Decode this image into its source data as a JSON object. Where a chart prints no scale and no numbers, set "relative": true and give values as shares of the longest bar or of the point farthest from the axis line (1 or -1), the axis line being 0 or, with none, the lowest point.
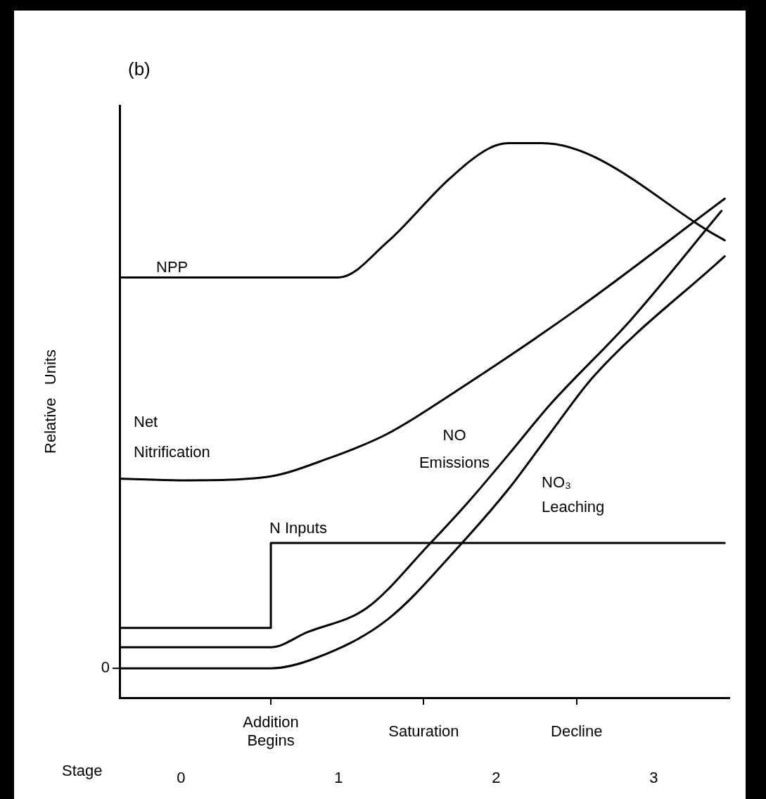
{
  "chart_data": {
    "type": "line",
    "title": "(b)",
    "ylabel": "Relative   Units",
    "xlabel": "Stage",
    "relative": true,
    "legend": false,
    "marker": "none",
    "line_style": "solid",
    "xlim": [
      -0.39,
      3.48
    ],
    "xticks": [
      0,
      1,
      2,
      3,
      {
        "value": 0.57,
        "label": null
      },
      {
        "value": 1.54,
        "label": null
      },
      {
        "value": 2.51,
        "label": null
      }
    ],
    "annotations": [
      "0",
      "Addition Begins",
      "Saturation",
      "Decline"
    ],
    "series": [
      {
        "name": "NPP",
        "color": "#000000",
        "x": [
          -0.39,
          1.0,
          1.31,
          1.7,
          1.95,
          2.08,
          2.29,
          3.45
        ],
        "values": [
          0.758,
          0.758,
          0.822,
          0.935,
          0.99,
          1.0,
          1.0,
          0.825
        ]
      },
      {
        "name": "Net Nitrification",
        "color": "#000000",
        "x": [
          -0.39,
          0.03,
          0.54,
          0.93,
          1.31,
          1.73,
          2.51,
          3.45
        ],
        "values": [
          0.395,
          0.392,
          0.398,
          0.431,
          0.476,
          0.55,
          0.7,
          0.9
        ]
      },
      {
        "name": "NO Emissions",
        "color": "#000000",
        "x": [
          -0.39,
          0.57,
          0.8,
          1.18,
          1.57,
          1.82,
          2.08,
          2.34,
          2.85,
          3.43
        ],
        "values": [
          0.091,
          0.091,
          0.118,
          0.162,
          0.275,
          0.352,
          0.439,
          0.528,
          0.68,
          0.878
        ]
      },
      {
        "name": "NO₃ Leaching",
        "color": "#000000",
        "x": [
          -0.39,
          0.57,
          0.85,
          1.31,
          1.77,
          2.08,
          2.34,
          2.62,
          3.45
        ],
        "values": [
          0.053,
          0.053,
          0.071,
          0.141,
          0.275,
          0.377,
          0.476,
          0.58,
          0.796
        ]
      },
      {
        "name": "N Inputs",
        "color": "#000000",
        "x": [
          -0.39,
          0.57,
          0.57,
          3.45
        ],
        "values": [
          0.126,
          0.126,
          0.279,
          0.279
        ]
      }
    ]
  }
}
